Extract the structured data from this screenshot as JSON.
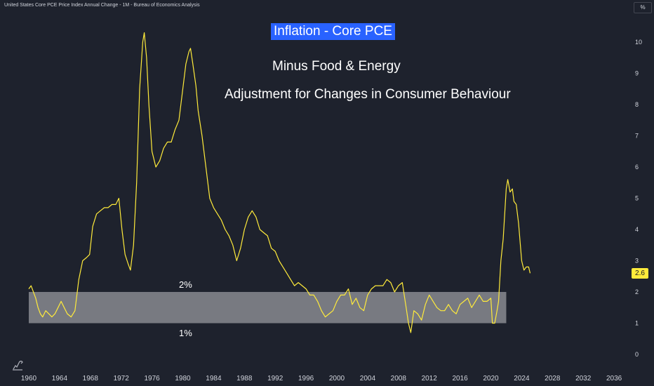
{
  "header": {
    "source_title": "United States Core PCE Price Index Annual Change - 1M - Bureau of Economics Analysis",
    "unit": "%"
  },
  "annotations": {
    "title": "Inflation - Core PCE",
    "subtitle1": "Minus Food & Energy",
    "subtitle2": "Adjustment for Changes in Consumer Behaviour",
    "band_upper_label": "2%",
    "band_lower_label": "1%"
  },
  "colors": {
    "background": "#1e222d",
    "line": "#ffeb3b",
    "band": "#ffffff",
    "title_bg": "#2962ff",
    "tick_text": "#d1d4dc"
  },
  "logo_icon": "tradingview-logo-icon",
  "chart_data": {
    "type": "line",
    "title": "Inflation - Core PCE",
    "xlim": [
      1960,
      2038
    ],
    "ylim": [
      -0.4,
      11.1
    ],
    "x_ticks": [
      "1960",
      "1964",
      "1968",
      "1972",
      "1976",
      "1980",
      "1984",
      "1988",
      "1992",
      "1996",
      "2000",
      "2004",
      "2008",
      "2012",
      "2016",
      "2020",
      "2024",
      "2028",
      "2032",
      "2036"
    ],
    "y_ticks": [
      "0",
      "1",
      "2",
      "3",
      "4",
      "5",
      "6",
      "7",
      "8",
      "9",
      "10"
    ],
    "y_axis_side": "right",
    "grid": false,
    "band": {
      "low": 1,
      "high": 2,
      "x_start": 1960,
      "x_end": 2022
    },
    "last_value": "2.6",
    "series": [
      {
        "points": [
          [
            1960.0,
            2.1
          ],
          [
            1960.3,
            2.2
          ],
          [
            1960.6,
            2.0
          ],
          [
            1960.9,
            1.8
          ],
          [
            1961.2,
            1.5
          ],
          [
            1961.5,
            1.3
          ],
          [
            1961.8,
            1.2
          ],
          [
            1962.2,
            1.4
          ],
          [
            1962.6,
            1.3
          ],
          [
            1963.0,
            1.2
          ],
          [
            1963.4,
            1.3
          ],
          [
            1963.8,
            1.5
          ],
          [
            1964.2,
            1.7
          ],
          [
            1964.6,
            1.5
          ],
          [
            1965.0,
            1.3
          ],
          [
            1965.5,
            1.2
          ],
          [
            1966.0,
            1.4
          ],
          [
            1966.5,
            2.4
          ],
          [
            1967.0,
            3.0
          ],
          [
            1967.5,
            3.1
          ],
          [
            1967.9,
            3.2
          ],
          [
            1968.3,
            4.1
          ],
          [
            1968.8,
            4.5
          ],
          [
            1969.3,
            4.6
          ],
          [
            1969.8,
            4.7
          ],
          [
            1970.3,
            4.7
          ],
          [
            1970.8,
            4.8
          ],
          [
            1971.3,
            4.8
          ],
          [
            1971.7,
            5.0
          ],
          [
            1972.1,
            4.0
          ],
          [
            1972.5,
            3.2
          ],
          [
            1972.9,
            2.9
          ],
          [
            1973.2,
            2.7
          ],
          [
            1973.6,
            3.5
          ],
          [
            1974.0,
            5.5
          ],
          [
            1974.4,
            8.5
          ],
          [
            1974.8,
            10.0
          ],
          [
            1975.0,
            10.3
          ],
          [
            1975.3,
            9.5
          ],
          [
            1975.6,
            8.0
          ],
          [
            1976.0,
            6.5
          ],
          [
            1976.5,
            6.0
          ],
          [
            1977.0,
            6.2
          ],
          [
            1977.5,
            6.6
          ],
          [
            1978.0,
            6.8
          ],
          [
            1978.5,
            6.8
          ],
          [
            1979.0,
            7.2
          ],
          [
            1979.5,
            7.5
          ],
          [
            1980.0,
            8.5
          ],
          [
            1980.4,
            9.3
          ],
          [
            1980.8,
            9.7
          ],
          [
            1981.0,
            9.8
          ],
          [
            1981.3,
            9.3
          ],
          [
            1981.7,
            8.6
          ],
          [
            1982.0,
            7.8
          ],
          [
            1982.5,
            7.0
          ],
          [
            1983.0,
            6.0
          ],
          [
            1983.5,
            5.0
          ],
          [
            1984.0,
            4.7
          ],
          [
            1984.5,
            4.5
          ],
          [
            1985.0,
            4.3
          ],
          [
            1985.5,
            4.0
          ],
          [
            1986.0,
            3.8
          ],
          [
            1986.5,
            3.5
          ],
          [
            1987.0,
            3.0
          ],
          [
            1987.5,
            3.4
          ],
          [
            1988.0,
            4.0
          ],
          [
            1988.5,
            4.4
          ],
          [
            1989.0,
            4.6
          ],
          [
            1989.5,
            4.4
          ],
          [
            1990.0,
            4.0
          ],
          [
            1990.5,
            3.9
          ],
          [
            1991.0,
            3.8
          ],
          [
            1991.5,
            3.4
          ],
          [
            1992.0,
            3.3
          ],
          [
            1992.5,
            3.0
          ],
          [
            1993.0,
            2.8
          ],
          [
            1993.5,
            2.6
          ],
          [
            1994.0,
            2.4
          ],
          [
            1994.5,
            2.2
          ],
          [
            1995.0,
            2.3
          ],
          [
            1995.5,
            2.2
          ],
          [
            1996.0,
            2.1
          ],
          [
            1996.5,
            1.9
          ],
          [
            1997.0,
            1.9
          ],
          [
            1997.5,
            1.7
          ],
          [
            1998.0,
            1.4
          ],
          [
            1998.5,
            1.2
          ],
          [
            1999.0,
            1.3
          ],
          [
            1999.5,
            1.4
          ],
          [
            2000.0,
            1.7
          ],
          [
            2000.5,
            1.9
          ],
          [
            2001.0,
            1.9
          ],
          [
            2001.5,
            2.1
          ],
          [
            2002.0,
            1.6
          ],
          [
            2002.5,
            1.8
          ],
          [
            2003.0,
            1.5
          ],
          [
            2003.5,
            1.4
          ],
          [
            2004.0,
            1.9
          ],
          [
            2004.5,
            2.1
          ],
          [
            2005.0,
            2.2
          ],
          [
            2005.5,
            2.2
          ],
          [
            2006.0,
            2.2
          ],
          [
            2006.5,
            2.4
          ],
          [
            2007.0,
            2.3
          ],
          [
            2007.5,
            2.0
          ],
          [
            2008.0,
            2.2
          ],
          [
            2008.5,
            2.3
          ],
          [
            2009.0,
            1.5
          ],
          [
            2009.3,
            1.0
          ],
          [
            2009.6,
            0.7
          ],
          [
            2010.0,
            1.4
          ],
          [
            2010.5,
            1.3
          ],
          [
            2011.0,
            1.1
          ],
          [
            2011.5,
            1.6
          ],
          [
            2012.0,
            1.9
          ],
          [
            2012.5,
            1.7
          ],
          [
            2013.0,
            1.5
          ],
          [
            2013.5,
            1.4
          ],
          [
            2014.0,
            1.4
          ],
          [
            2014.5,
            1.6
          ],
          [
            2015.0,
            1.4
          ],
          [
            2015.5,
            1.3
          ],
          [
            2016.0,
            1.6
          ],
          [
            2016.5,
            1.7
          ],
          [
            2017.0,
            1.8
          ],
          [
            2017.5,
            1.5
          ],
          [
            2018.0,
            1.7
          ],
          [
            2018.5,
            1.9
          ],
          [
            2019.0,
            1.7
          ],
          [
            2019.5,
            1.7
          ],
          [
            2020.0,
            1.8
          ],
          [
            2020.2,
            1.0
          ],
          [
            2020.5,
            1.0
          ],
          [
            2020.8,
            1.4
          ],
          [
            2021.0,
            1.7
          ],
          [
            2021.3,
            3.0
          ],
          [
            2021.6,
            3.7
          ],
          [
            2022.0,
            5.3
          ],
          [
            2022.2,
            5.6
          ],
          [
            2022.5,
            5.2
          ],
          [
            2022.8,
            5.3
          ],
          [
            2023.0,
            4.9
          ],
          [
            2023.3,
            4.8
          ],
          [
            2023.6,
            4.2
          ],
          [
            2024.0,
            3.0
          ],
          [
            2024.3,
            2.7
          ],
          [
            2024.6,
            2.8
          ],
          [
            2024.9,
            2.8
          ],
          [
            2025.1,
            2.6
          ]
        ]
      }
    ]
  }
}
